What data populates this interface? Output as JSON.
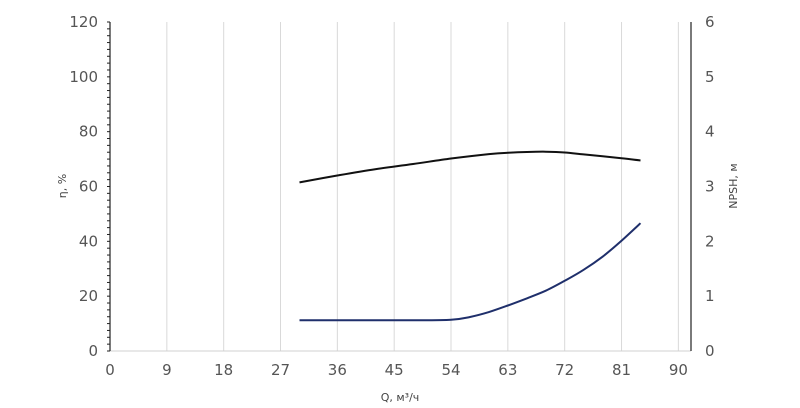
{
  "chart_data": {
    "type": "line",
    "xlabel": "Q, м³/ч",
    "ylabel_left": "η, %",
    "ylabel_right": "NPSH, м",
    "x_ticks": [
      "0",
      "9",
      "18",
      "27",
      "36",
      "45",
      "54",
      "63",
      "72",
      "81",
      "90"
    ],
    "y_left_ticks": [
      "0",
      "20",
      "40",
      "60",
      "80",
      "100",
      "120"
    ],
    "y_right_ticks": [
      "0",
      "1",
      "2",
      "3",
      "4",
      "5",
      "6"
    ],
    "xlim": [
      0,
      92
    ],
    "ylim_left": [
      0,
      120
    ],
    "ylim_right": [
      0,
      6
    ],
    "grid": "vertical",
    "series": [
      {
        "axis": "left",
        "color": "#111111",
        "x": [
          30,
          36,
          42,
          48,
          54,
          60,
          63,
          66,
          69,
          72,
          75,
          78,
          81,
          84
        ],
        "y": [
          61.5,
          64,
          66.3,
          68.2,
          70.2,
          71.8,
          72.3,
          72.6,
          72.7,
          72.4,
          71.7,
          71,
          70.3,
          69.5
        ]
      },
      {
        "axis": "right",
        "color": "#1f2f6b",
        "x": [
          30,
          36,
          42,
          48,
          54,
          57,
          60,
          63,
          66,
          69,
          72,
          75,
          78,
          81,
          84
        ],
        "y": [
          0.56,
          0.56,
          0.56,
          0.56,
          0.57,
          0.62,
          0.71,
          0.83,
          0.96,
          1.1,
          1.28,
          1.48,
          1.72,
          2.01,
          2.33
        ]
      }
    ]
  }
}
